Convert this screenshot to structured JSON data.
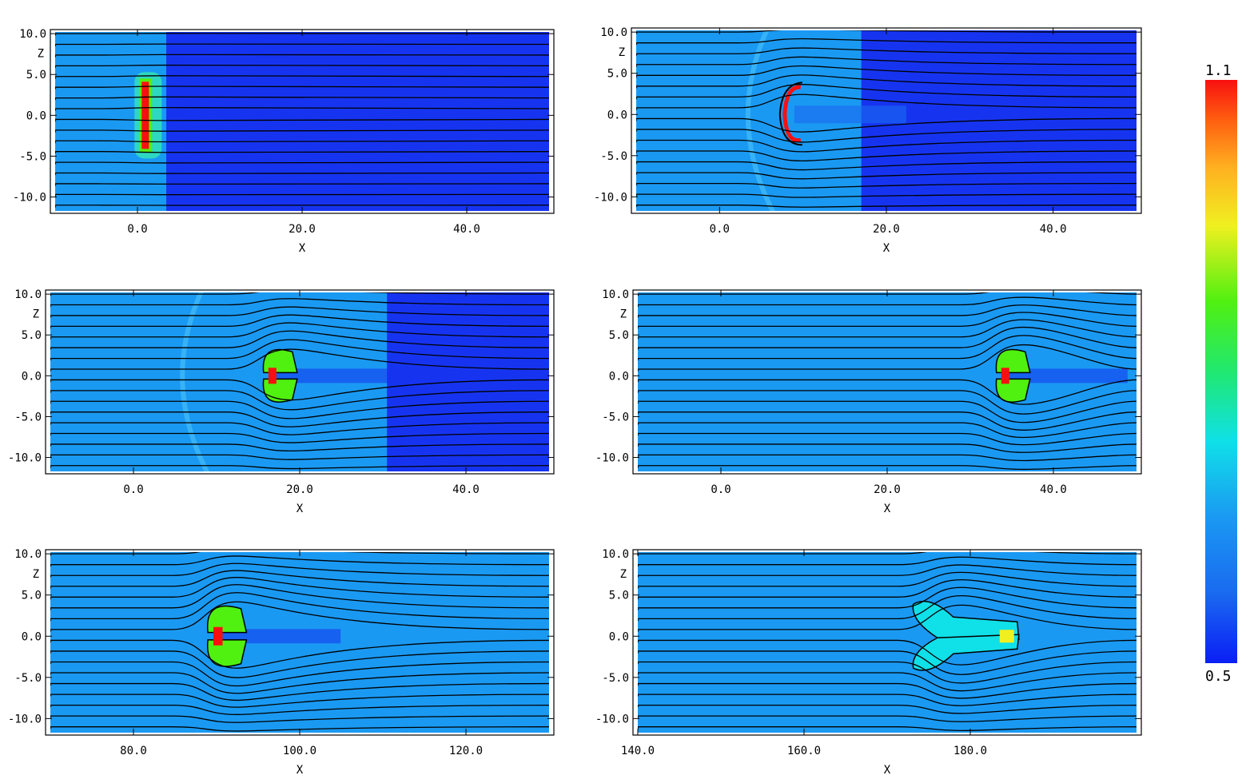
{
  "chart_data": [
    {
      "type": "heatmap",
      "xlabel": "X",
      "ylabel": "Z",
      "xlim": [
        -10,
        50
      ],
      "ylim": [
        -12,
        10.5
      ],
      "xticks": [
        {
          "v": 0,
          "t": "0.0"
        },
        {
          "v": 20,
          "t": "20.0"
        },
        {
          "v": 40,
          "t": "40.0"
        }
      ],
      "yticks": [
        {
          "v": 10,
          "t": "10.0"
        },
        {
          "v": 5,
          "t": "5.0"
        },
        {
          "v": 0,
          "t": "0.0"
        },
        {
          "v": -5,
          "t": "-5.0"
        },
        {
          "v": -10,
          "t": "-10.0"
        }
      ],
      "ambient_region_end_x": 3.5,
      "shock_x": null,
      "cloud_center": [
        1,
        0
      ],
      "cloud_shape": "slab",
      "deflection": 0.1
    },
    {
      "type": "heatmap",
      "xlabel": "X",
      "ylabel": "Z",
      "xlim": [
        -10,
        50
      ],
      "ylim": [
        -12,
        10.5
      ],
      "xticks": [
        {
          "v": 0,
          "t": "0.0"
        },
        {
          "v": 20,
          "t": "20.0"
        },
        {
          "v": 40,
          "t": "40.0"
        }
      ],
      "yticks": [
        {
          "v": 10,
          "t": "10.0"
        },
        {
          "v": 5,
          "t": "5.0"
        },
        {
          "v": 0,
          "t": "0.0"
        },
        {
          "v": -5,
          "t": "-5.0"
        },
        {
          "v": -10,
          "t": "-10.0"
        }
      ],
      "ambient_region_end_x": 17,
      "shock_x": 0,
      "cloud_center": [
        8,
        0
      ],
      "cloud_shape": "bracket",
      "deflection": 1.2
    },
    {
      "type": "heatmap",
      "xlabel": "X",
      "ylabel": "Z",
      "xlim": [
        -10,
        50
      ],
      "ylim": [
        -12,
        10.5
      ],
      "xticks": [
        {
          "v": 0,
          "t": "0.0"
        },
        {
          "v": 20,
          "t": "20.0"
        },
        {
          "v": 40,
          "t": "40.0"
        }
      ],
      "yticks": [
        {
          "v": 10,
          "t": "10.0"
        },
        {
          "v": 5,
          "t": "5.0"
        },
        {
          "v": 0,
          "t": "0.0"
        },
        {
          "v": -5,
          "t": "-5.0"
        },
        {
          "v": -10,
          "t": "-10.0"
        }
      ],
      "ambient_region_end_x": 30.5,
      "shock_x": 2.5,
      "cloud_center": [
        17,
        0
      ],
      "cloud_shape": "mushroom",
      "deflection": 1.8
    },
    {
      "type": "heatmap",
      "xlabel": "X",
      "ylabel": "Z",
      "xlim": [
        -10,
        50
      ],
      "ylim": [
        -12,
        10.5
      ],
      "xticks": [
        {
          "v": 0,
          "t": "0.0"
        },
        {
          "v": 20,
          "t": "20.0"
        },
        {
          "v": 40,
          "t": "40.0"
        }
      ],
      "yticks": [
        {
          "v": 10,
          "t": "10.0"
        },
        {
          "v": 5,
          "t": "5.0"
        },
        {
          "v": 0,
          "t": "0.0"
        },
        {
          "v": -5,
          "t": "-5.0"
        },
        {
          "v": -10,
          "t": "-10.0"
        }
      ],
      "ambient_region_end_x": null,
      "shock_x": null,
      "cloud_center": [
        34.5,
        0
      ],
      "cloud_shape": "mushroom",
      "deflection": 2.2
    },
    {
      "type": "heatmap",
      "xlabel": "X",
      "ylabel": "Z",
      "xlim": [
        70,
        130
      ],
      "ylim": [
        -12,
        10.5
      ],
      "xticks": [
        {
          "v": 80,
          "t": "80.0"
        },
        {
          "v": 100,
          "t": "100.0"
        },
        {
          "v": 120,
          "t": "120.0"
        }
      ],
      "yticks": [
        {
          "v": 10,
          "t": "10.0"
        },
        {
          "v": 5,
          "t": "5.0"
        },
        {
          "v": 0,
          "t": "0.0"
        },
        {
          "v": -5,
          "t": "-5.0"
        },
        {
          "v": -10,
          "t": "-10.0"
        }
      ],
      "ambient_region_end_x": null,
      "shock_x": null,
      "cloud_center": [
        90.5,
        0
      ],
      "cloud_shape": "mushroom",
      "deflection": 2.5
    },
    {
      "type": "heatmap",
      "xlabel": "X",
      "ylabel": "Z",
      "xlim": [
        140,
        200
      ],
      "ylim": [
        -12,
        10.5
      ],
      "xticks": [
        {
          "v": 140,
          "t": "140.0"
        },
        {
          "v": 160,
          "t": "160.0"
        },
        {
          "v": 180,
          "t": "180.0"
        }
      ],
      "yticks": [
        {
          "v": 10,
          "t": "10.0"
        },
        {
          "v": 5,
          "t": "5.0"
        },
        {
          "v": 0,
          "t": "0.0"
        },
        {
          "v": -5,
          "t": "-5.0"
        },
        {
          "v": -10,
          "t": "-10.0"
        }
      ],
      "ambient_region_end_x": null,
      "shock_x": null,
      "cloud_center": [
        177,
        0
      ],
      "cloud_shape": "elongated",
      "deflection": 2.2
    }
  ],
  "colorbar": {
    "max_label": "1.1",
    "min_label": "0.5",
    "vmin": 0.5,
    "vmax": 1.1
  },
  "colors": {
    "background_field": "#1a99f2",
    "upstream_field": "#1634f0",
    "streamline": "#000000",
    "colormap": [
      "#0a1ef5",
      "#1a6af0",
      "#1a99f2",
      "#10e0e8",
      "#20e870",
      "#50f010",
      "#f0f020",
      "#ffb020",
      "#ff6010",
      "#f81010"
    ]
  }
}
